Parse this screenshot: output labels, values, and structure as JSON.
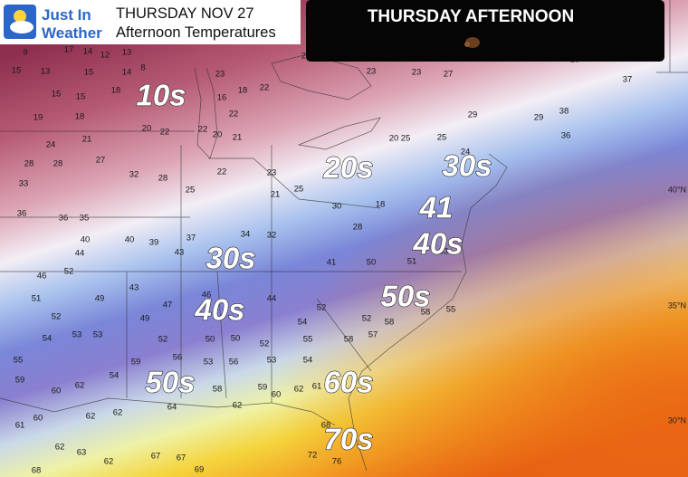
{
  "header": {
    "logo_line1": "Just In",
    "logo_line2": "Weather",
    "title": "THURSDAY NOV 27",
    "subtitle": "Afternoon Temperatures"
  },
  "banner": {
    "title": "THURSDAY AFTERNOON"
  },
  "zones": [
    "10s",
    "20s",
    "30s",
    "41",
    "40s",
    "30s",
    "40s",
    "50s",
    "60s",
    "50s",
    "70s"
  ],
  "latitudes": [
    "40°N",
    "35°N",
    "30°N"
  ],
  "stations": [
    9,
    17,
    14,
    12,
    13,
    15,
    13,
    15,
    14,
    8,
    15,
    15,
    18,
    19,
    18,
    20,
    22,
    23,
    18,
    22,
    16,
    22,
    22,
    20,
    21,
    23,
    18,
    23,
    23,
    27,
    28,
    30,
    28,
    37,
    38,
    36,
    29,
    29,
    20,
    25,
    25,
    24,
    24,
    21,
    28,
    28,
    27,
    32,
    28,
    25,
    22,
    23,
    21,
    25,
    30,
    28,
    18,
    33,
    36,
    36,
    35,
    40,
    44,
    40,
    39,
    43,
    37,
    34,
    32,
    41,
    50,
    51,
    53,
    46,
    51,
    52,
    52,
    49,
    43,
    47,
    46,
    44,
    54,
    52,
    52,
    58,
    58,
    55,
    54,
    53,
    53,
    49,
    52,
    50,
    50,
    52,
    55,
    58,
    57,
    55,
    59,
    60,
    62,
    54,
    59,
    56,
    53,
    56,
    53,
    54,
    61,
    61,
    60,
    62,
    62,
    64,
    58,
    62,
    59,
    60,
    62,
    68,
    62,
    63,
    62,
    67,
    67,
    69,
    68,
    72,
    76
  ]
}
